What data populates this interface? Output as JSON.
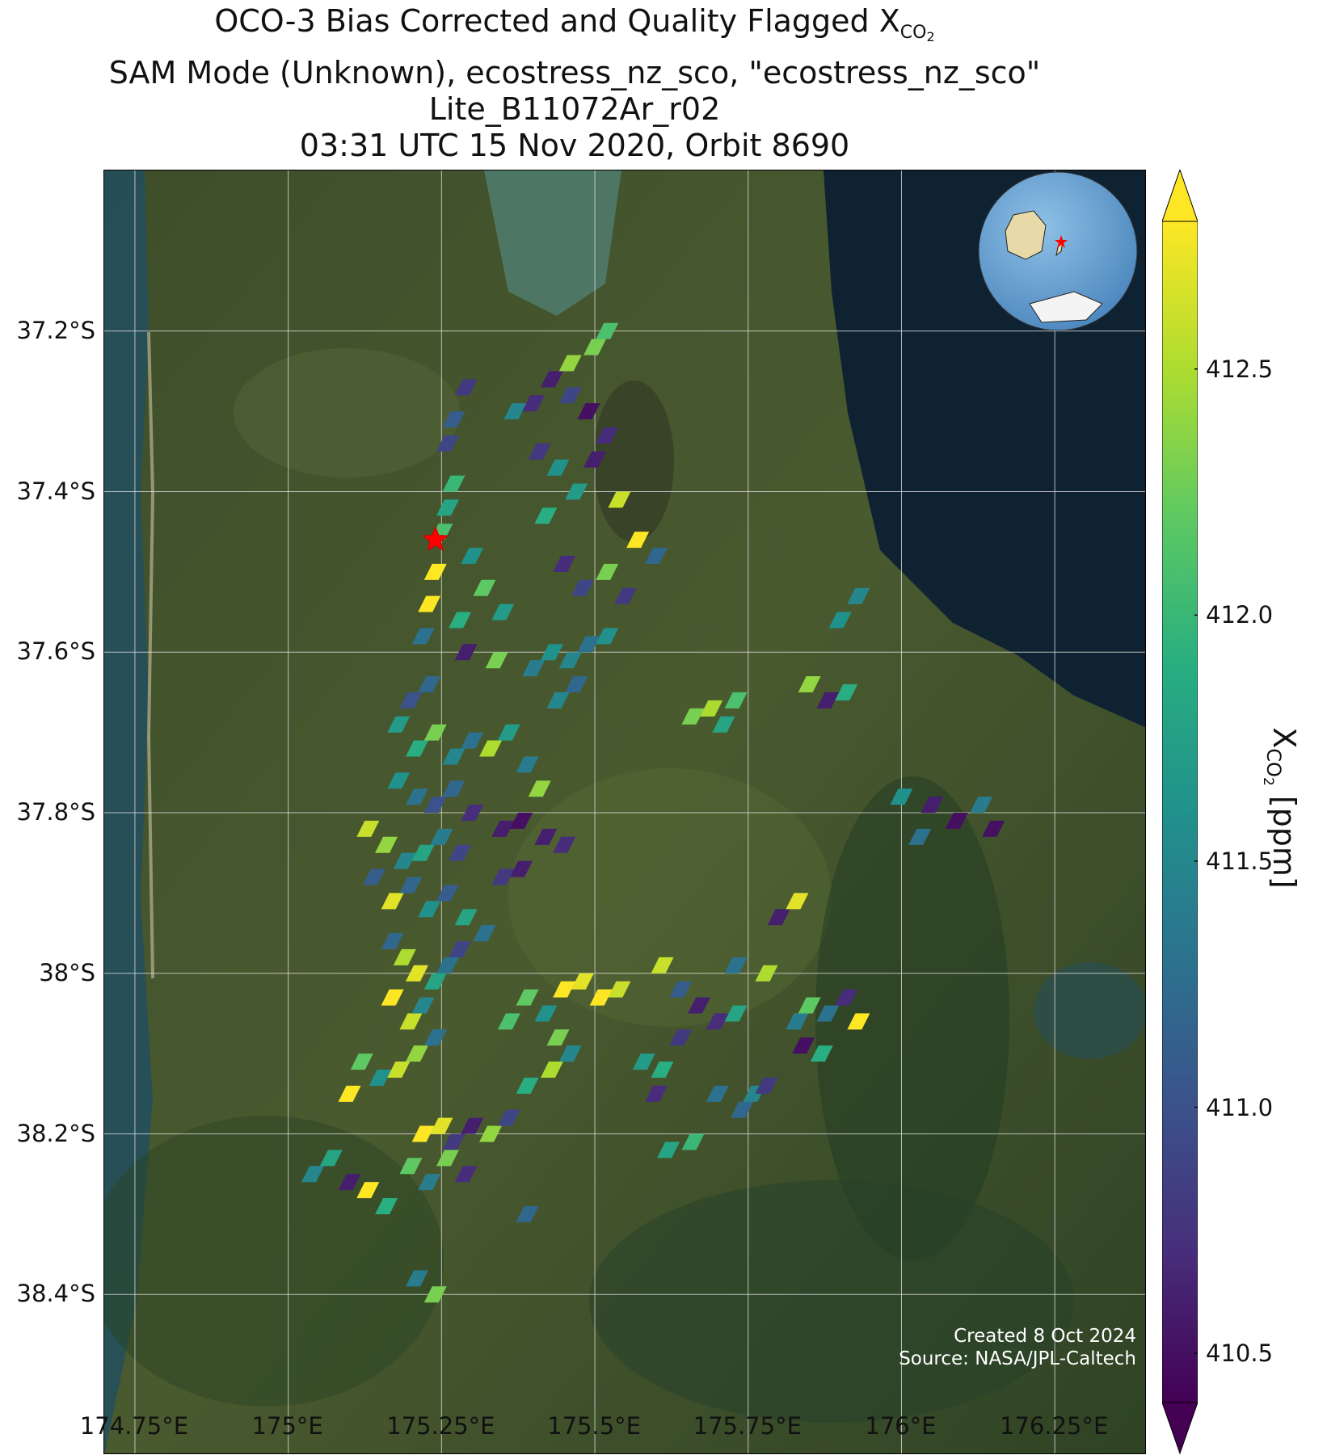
{
  "title": {
    "line1_prefix": "OCO-3 Bias Corrected and Quality Flagged X",
    "line1_sub": "CO",
    "line1_sub2": "2",
    "line2": "SAM Mode (Unknown), ecostress_nz_sco, \"ecostress_nz_sco\"",
    "line3": "Lite_B11072Ar_r02",
    "line4": "03:31 UTC 15 Nov 2020, Orbit 8690"
  },
  "map": {
    "lat_labels": [
      "37.2°S",
      "37.4°S",
      "37.6°S",
      "37.8°S",
      "38°S",
      "38.2°S",
      "38.4°S"
    ],
    "lon_labels": [
      "174.75°E",
      "175°E",
      "175.25°E",
      "175.5°E",
      "175.75°E",
      "176°E",
      "176.25°E"
    ],
    "target_marker": "red-star",
    "inset": "globe-locator"
  },
  "colorbar": {
    "label_prefix": "X",
    "label_sub": "CO",
    "label_sub2": "2",
    "label_suffix": " [ppm]",
    "ticks": [
      "412.5",
      "412.0",
      "411.5",
      "411.0",
      "410.5"
    ],
    "colormap": "viridis",
    "extend": "both"
  },
  "credits": {
    "created": "Created 8 Oct 2024",
    "source": "Source: NASA/JPL-Caltech"
  },
  "chart_data": {
    "type": "heatmap",
    "xlabel": "",
    "ylabel": "",
    "clabel": "XCO2 [ppm]",
    "xlim": [
      174.7,
      176.4
    ],
    "ylim": [
      -38.6,
      -37.0
    ],
    "clim": [
      410.4,
      412.8
    ],
    "xticks": [
      174.75,
      175.0,
      175.25,
      175.5,
      175.75,
      176.0,
      176.25
    ],
    "yticks": [
      -37.2,
      -37.4,
      -37.6,
      -37.8,
      -38.0,
      -38.2,
      -38.4
    ],
    "target": {
      "lon": 175.24,
      "lat": -37.46
    },
    "soundings": [
      [
        175.29,
        -37.27,
        410.8
      ],
      [
        175.27,
        -37.31,
        411.1
      ],
      [
        175.26,
        -37.34,
        410.9
      ],
      [
        175.37,
        -37.3,
        411.5
      ],
      [
        175.4,
        -37.29,
        410.7
      ],
      [
        175.43,
        -37.26,
        410.6
      ],
      [
        175.46,
        -37.28,
        410.9
      ],
      [
        175.49,
        -37.3,
        410.5
      ],
      [
        175.46,
        -37.24,
        412.4
      ],
      [
        175.5,
        -37.22,
        412.3
      ],
      [
        175.52,
        -37.2,
        412.1
      ],
      [
        175.41,
        -37.35,
        410.8
      ],
      [
        175.44,
        -37.37,
        411.6
      ],
      [
        175.47,
        -37.4,
        411.7
      ],
      [
        175.5,
        -37.36,
        410.6
      ],
      [
        175.52,
        -37.33,
        410.7
      ],
      [
        175.54,
        -37.41,
        412.6
      ],
      [
        175.42,
        -37.43,
        411.9
      ],
      [
        175.45,
        -37.49,
        410.7
      ],
      [
        175.48,
        -37.52,
        410.9
      ],
      [
        175.52,
        -37.5,
        412.3
      ],
      [
        175.55,
        -37.53,
        410.8
      ],
      [
        175.57,
        -37.46,
        412.8
      ],
      [
        175.6,
        -37.48,
        411.2
      ],
      [
        175.27,
        -37.39,
        412.0
      ],
      [
        175.26,
        -37.42,
        411.8
      ],
      [
        175.25,
        -37.45,
        412.1
      ],
      [
        175.24,
        -37.5,
        412.8
      ],
      [
        175.23,
        -37.54,
        412.8
      ],
      [
        175.22,
        -37.58,
        411.3
      ],
      [
        175.3,
        -37.48,
        411.6
      ],
      [
        175.32,
        -37.52,
        412.2
      ],
      [
        175.28,
        -37.56,
        411.9
      ],
      [
        175.35,
        -37.55,
        411.7
      ],
      [
        175.29,
        -37.6,
        410.6
      ],
      [
        175.34,
        -37.61,
        412.3
      ],
      [
        175.4,
        -37.62,
        411.4
      ],
      [
        175.43,
        -37.6,
        411.6
      ],
      [
        175.46,
        -37.61,
        411.5
      ],
      [
        175.49,
        -37.59,
        411.3
      ],
      [
        175.52,
        -37.58,
        411.6
      ],
      [
        175.44,
        -37.66,
        411.5
      ],
      [
        175.47,
        -37.64,
        411.2
      ],
      [
        175.66,
        -37.68,
        412.3
      ],
      [
        175.69,
        -37.67,
        412.5
      ],
      [
        175.71,
        -37.69,
        411.8
      ],
      [
        175.73,
        -37.66,
        412.1
      ],
      [
        175.23,
        -37.64,
        411.2
      ],
      [
        175.2,
        -37.66,
        411.0
      ],
      [
        175.18,
        -37.69,
        411.7
      ],
      [
        175.21,
        -37.72,
        411.9
      ],
      [
        175.24,
        -37.7,
        412.3
      ],
      [
        175.27,
        -37.73,
        411.5
      ],
      [
        175.3,
        -37.71,
        411.3
      ],
      [
        175.33,
        -37.72,
        412.5
      ],
      [
        175.36,
        -37.7,
        411.7
      ],
      [
        175.39,
        -37.74,
        411.4
      ],
      [
        175.41,
        -37.77,
        412.4
      ],
      [
        175.18,
        -37.76,
        411.6
      ],
      [
        175.21,
        -37.78,
        411.3
      ],
      [
        175.24,
        -37.79,
        411.0
      ],
      [
        175.27,
        -37.77,
        411.2
      ],
      [
        175.3,
        -37.8,
        410.7
      ],
      [
        175.13,
        -37.82,
        412.6
      ],
      [
        175.16,
        -37.84,
        412.4
      ],
      [
        175.19,
        -37.86,
        411.5
      ],
      [
        175.22,
        -37.85,
        411.8
      ],
      [
        175.25,
        -37.83,
        411.4
      ],
      [
        175.28,
        -37.85,
        410.9
      ],
      [
        175.35,
        -37.82,
        410.6
      ],
      [
        175.38,
        -37.81,
        410.5
      ],
      [
        175.42,
        -37.83,
        410.6
      ],
      [
        175.45,
        -37.84,
        410.7
      ],
      [
        175.14,
        -37.88,
        411.1
      ],
      [
        175.17,
        -37.91,
        412.7
      ],
      [
        175.2,
        -37.89,
        411.2
      ],
      [
        175.23,
        -37.92,
        411.6
      ],
      [
        175.26,
        -37.9,
        411.1
      ],
      [
        175.29,
        -37.93,
        411.8
      ],
      [
        175.32,
        -37.95,
        411.3
      ],
      [
        175.35,
        -37.88,
        410.8
      ],
      [
        175.38,
        -37.87,
        410.6
      ],
      [
        175.17,
        -37.96,
        411.2
      ],
      [
        175.19,
        -37.98,
        412.5
      ],
      [
        175.21,
        -38.0,
        412.7
      ],
      [
        175.17,
        -38.03,
        412.8
      ],
      [
        175.2,
        -38.06,
        412.6
      ],
      [
        175.22,
        -38.04,
        411.5
      ],
      [
        175.24,
        -38.01,
        411.8
      ],
      [
        175.26,
        -37.99,
        411.3
      ],
      [
        175.28,
        -37.97,
        410.9
      ],
      [
        175.12,
        -38.11,
        412.2
      ],
      [
        175.15,
        -38.13,
        411.6
      ],
      [
        175.18,
        -38.12,
        412.6
      ],
      [
        175.21,
        -38.1,
        412.4
      ],
      [
        175.24,
        -38.08,
        411.3
      ],
      [
        175.1,
        -38.15,
        412.8
      ],
      [
        175.39,
        -38.03,
        412.2
      ],
      [
        175.42,
        -38.05,
        411.6
      ],
      [
        175.45,
        -38.02,
        412.8
      ],
      [
        175.48,
        -38.01,
        412.7
      ],
      [
        175.51,
        -38.03,
        412.8
      ],
      [
        175.54,
        -38.02,
        412.6
      ],
      [
        175.36,
        -38.06,
        412.1
      ],
      [
        175.44,
        -38.08,
        412.3
      ],
      [
        175.39,
        -38.14,
        411.9
      ],
      [
        175.43,
        -38.12,
        412.5
      ],
      [
        175.46,
        -38.1,
        411.5
      ],
      [
        175.22,
        -38.2,
        412.8
      ],
      [
        175.25,
        -38.19,
        412.7
      ],
      [
        175.27,
        -38.21,
        410.8
      ],
      [
        175.3,
        -38.19,
        410.6
      ],
      [
        175.33,
        -38.2,
        412.4
      ],
      [
        175.36,
        -38.18,
        410.9
      ],
      [
        175.2,
        -38.24,
        412.2
      ],
      [
        175.23,
        -38.26,
        411.4
      ],
      [
        175.26,
        -38.23,
        412.3
      ],
      [
        175.29,
        -38.25,
        410.7
      ],
      [
        175.04,
        -38.25,
        411.5
      ],
      [
        175.07,
        -38.23,
        411.8
      ],
      [
        175.1,
        -38.26,
        410.6
      ],
      [
        175.13,
        -38.27,
        412.8
      ],
      [
        175.16,
        -38.29,
        411.9
      ],
      [
        175.39,
        -38.3,
        411.2
      ],
      [
        175.21,
        -38.38,
        411.4
      ],
      [
        175.24,
        -38.4,
        412.3
      ],
      [
        175.61,
        -37.99,
        412.6
      ],
      [
        175.64,
        -38.02,
        411.1
      ],
      [
        175.67,
        -38.04,
        410.6
      ],
      [
        175.7,
        -38.06,
        410.7
      ],
      [
        175.73,
        -38.05,
        411.8
      ],
      [
        175.64,
        -38.08,
        410.8
      ],
      [
        175.58,
        -38.11,
        411.7
      ],
      [
        175.61,
        -38.12,
        411.9
      ],
      [
        175.6,
        -38.15,
        410.7
      ],
      [
        175.7,
        -38.15,
        411.3
      ],
      [
        175.74,
        -38.17,
        411.2
      ],
      [
        175.76,
        -38.15,
        411.5
      ],
      [
        175.62,
        -38.22,
        411.8
      ],
      [
        175.66,
        -38.21,
        412.0
      ],
      [
        175.78,
        -38.14,
        410.8
      ],
      [
        175.83,
        -38.06,
        411.4
      ],
      [
        175.85,
        -38.04,
        412.2
      ],
      [
        175.88,
        -38.05,
        411.3
      ],
      [
        175.91,
        -38.03,
        410.7
      ],
      [
        175.93,
        -38.06,
        412.8
      ],
      [
        175.87,
        -38.1,
        411.9
      ],
      [
        175.84,
        -38.09,
        410.5
      ],
      [
        175.8,
        -37.93,
        410.6
      ],
      [
        175.83,
        -37.91,
        412.7
      ],
      [
        175.73,
        -37.99,
        411.3
      ],
      [
        175.78,
        -38.0,
        412.5
      ],
      [
        175.9,
        -37.56,
        411.6
      ],
      [
        175.93,
        -37.53,
        411.5
      ],
      [
        175.85,
        -37.64,
        412.4
      ],
      [
        175.88,
        -37.66,
        410.6
      ],
      [
        175.91,
        -37.65,
        411.9
      ],
      [
        176.0,
        -37.78,
        411.6
      ],
      [
        176.05,
        -37.79,
        410.6
      ],
      [
        176.09,
        -37.81,
        410.5
      ],
      [
        176.13,
        -37.79,
        411.4
      ],
      [
        176.15,
        -37.82,
        410.5
      ],
      [
        176.03,
        -37.83,
        411.3
      ]
    ]
  }
}
